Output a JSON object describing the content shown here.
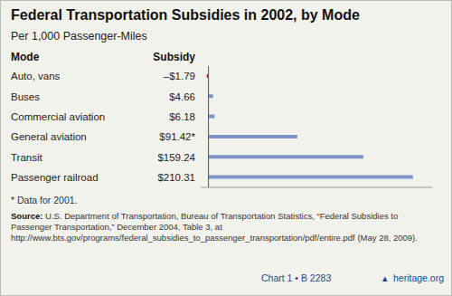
{
  "chart_data": {
    "type": "bar",
    "orientation": "horizontal",
    "title": "Federal Transportation Subsidies in 2002, by Mode",
    "subtitle": "Per 1,000 Passenger-Miles",
    "categories": [
      "Auto, vans",
      "Buses",
      "Commercial aviation",
      "General aviation",
      "Transit",
      "Passenger railroad"
    ],
    "values": [
      -1.79,
      4.66,
      6.18,
      91.42,
      159.24,
      210.31
    ],
    "value_labels": [
      "–$1.79",
      "$4.66",
      "$6.18",
      "$91.42*",
      "$159.24",
      "$210.31"
    ],
    "data_labels": true,
    "colors": [
      "#cc2222",
      "#7b93c8",
      "#7b93c8",
      "#7b93c8",
      "#7b93c8",
      "#7b93c8"
    ],
    "xlim": [
      -8,
      230
    ],
    "tick_labels": false,
    "grid": false,
    "annotations": [
      "Mode",
      "Subsidy",
      "* Data for 2001.",
      "Source:",
      "U.S. Department of Transportation, Bureau of Transportation Statistics, “Federal Subsidies to Passenger Transportation,” December 2004, Table 3, at http://www.bts.gov/programs/federal_subsidies_to_passenger_transportation/pdf/entire.pdf (May 28, 2009).",
      "Chart 1 • B 2283",
      "▲",
      "heritage.org"
    ]
  }
}
